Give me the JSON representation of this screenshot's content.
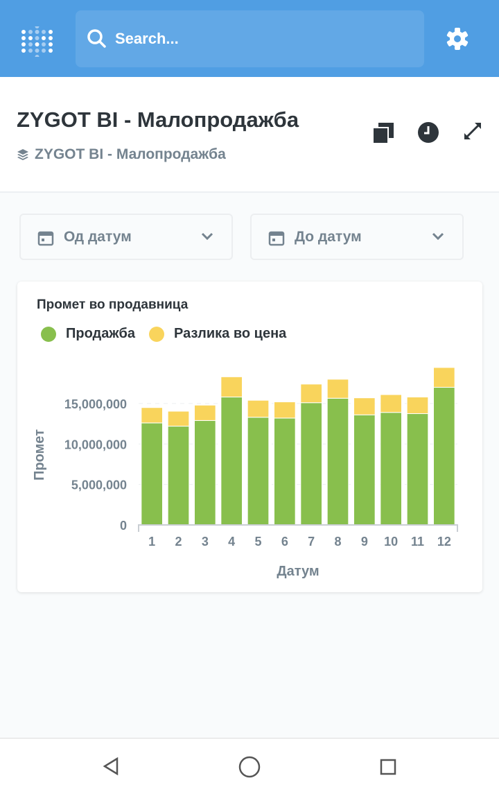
{
  "topbar": {
    "search_placeholder": "Search...",
    "logo_icon": "metabase-logo",
    "settings_icon": "gear-icon"
  },
  "header": {
    "title": "ZYGOT BI - Малопродажба",
    "breadcrumb": "ZYGOT BI - Малопродажба",
    "actions": [
      "duplicate-icon",
      "clock-icon",
      "fullscreen-icon"
    ]
  },
  "filters": [
    {
      "label": "Од датум"
    },
    {
      "label": "До датум"
    }
  ],
  "card": {
    "title": "Промет во продавница"
  },
  "colors": {
    "accent": "#509ee3",
    "sales": "#88bf4d",
    "diff": "#f9d45c"
  },
  "chart_data": {
    "type": "bar",
    "stacked": true,
    "title": "Промет во продавница",
    "xlabel": "Датум",
    "ylabel": "Промет",
    "categories": [
      "1",
      "2",
      "3",
      "4",
      "5",
      "6",
      "7",
      "8",
      "9",
      "10",
      "11",
      "12"
    ],
    "series": [
      {
        "name": "Продажба",
        "color": "#88bf4d",
        "values": [
          12600000,
          12200000,
          12900000,
          15800000,
          13300000,
          13200000,
          15100000,
          15650000,
          13600000,
          13900000,
          13750000,
          17000000
        ]
      },
      {
        "name": "Разлика во цена",
        "color": "#f9d45c",
        "values": [
          1900000,
          1850000,
          1900000,
          2500000,
          2100000,
          2000000,
          2300000,
          2350000,
          2100000,
          2200000,
          2050000,
          2450000
        ]
      }
    ],
    "yticks": [
      "0",
      "5,000,000",
      "10,000,000",
      "15,000,000"
    ],
    "ytick_values": [
      0,
      5000000,
      10000000,
      15000000
    ],
    "ylim": [
      0,
      20300000
    ],
    "grid": true,
    "legend": "top-left"
  }
}
